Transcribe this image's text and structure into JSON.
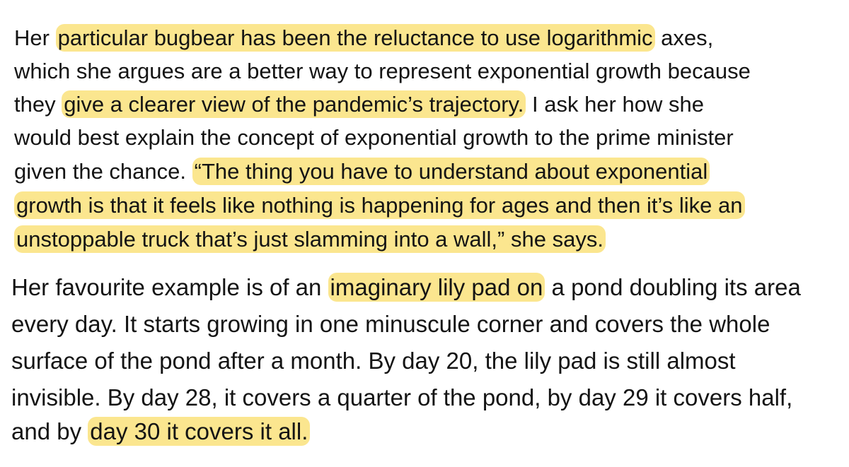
{
  "paragraphs": [
    {
      "lines": [
        {
          "segments": [
            {
              "text": "Her ",
              "highlight": false
            },
            {
              "text": "particular bugbear has been the reluctance to use logarithmic",
              "highlight": true
            },
            {
              "text": " axes,",
              "highlight": false
            }
          ]
        },
        {
          "segments": [
            {
              "text": "which she argues are a better way to represent exponential growth because",
              "highlight": false
            }
          ]
        },
        {
          "segments": [
            {
              "text": "they ",
              "highlight": false
            },
            {
              "text": "give a clearer view of the pandemic’s trajectory.",
              "highlight": true
            },
            {
              "text": " I ask her how she",
              "highlight": false
            }
          ]
        },
        {
          "segments": [
            {
              "text": "would best explain the concept of exponential growth to the prime minister",
              "highlight": false
            }
          ]
        },
        {
          "segments": [
            {
              "text": "given the chance. ",
              "highlight": false
            },
            {
              "text": "“The thing you have to understand about exponential",
              "highlight": true
            }
          ]
        },
        {
          "segments": [
            {
              "text": "growth is that it feels like nothing is happening for ages and then it’s like an",
              "highlight": true
            }
          ]
        },
        {
          "segments": [
            {
              "text": "unstoppable truck that’s just slamming into a wall,” she says.",
              "highlight": true
            }
          ]
        }
      ]
    },
    {
      "lines": [
        {
          "segments": [
            {
              "text": "Her favourite example is of an ",
              "highlight": false
            },
            {
              "text": "imaginary lily pad on",
              "highlight": true
            },
            {
              "text": " a pond doubling its area",
              "highlight": false
            }
          ]
        },
        {
          "segments": [
            {
              "text": "every day. It starts growing in one minuscule corner and covers the whole",
              "highlight": false
            }
          ]
        },
        {
          "segments": [
            {
              "text": "surface of the pond after a month. By day 20, the lily pad is still almost",
              "highlight": false
            }
          ]
        },
        {
          "segments": [
            {
              "text": "invisible. By day 28, it covers a quarter of the pond, by day 29 it covers half,",
              "highlight": false
            }
          ]
        },
        {
          "segments": [
            {
              "text": "and by ",
              "highlight": false
            },
            {
              "text": "day 30 it covers it all.",
              "highlight": true
            }
          ]
        }
      ]
    }
  ]
}
